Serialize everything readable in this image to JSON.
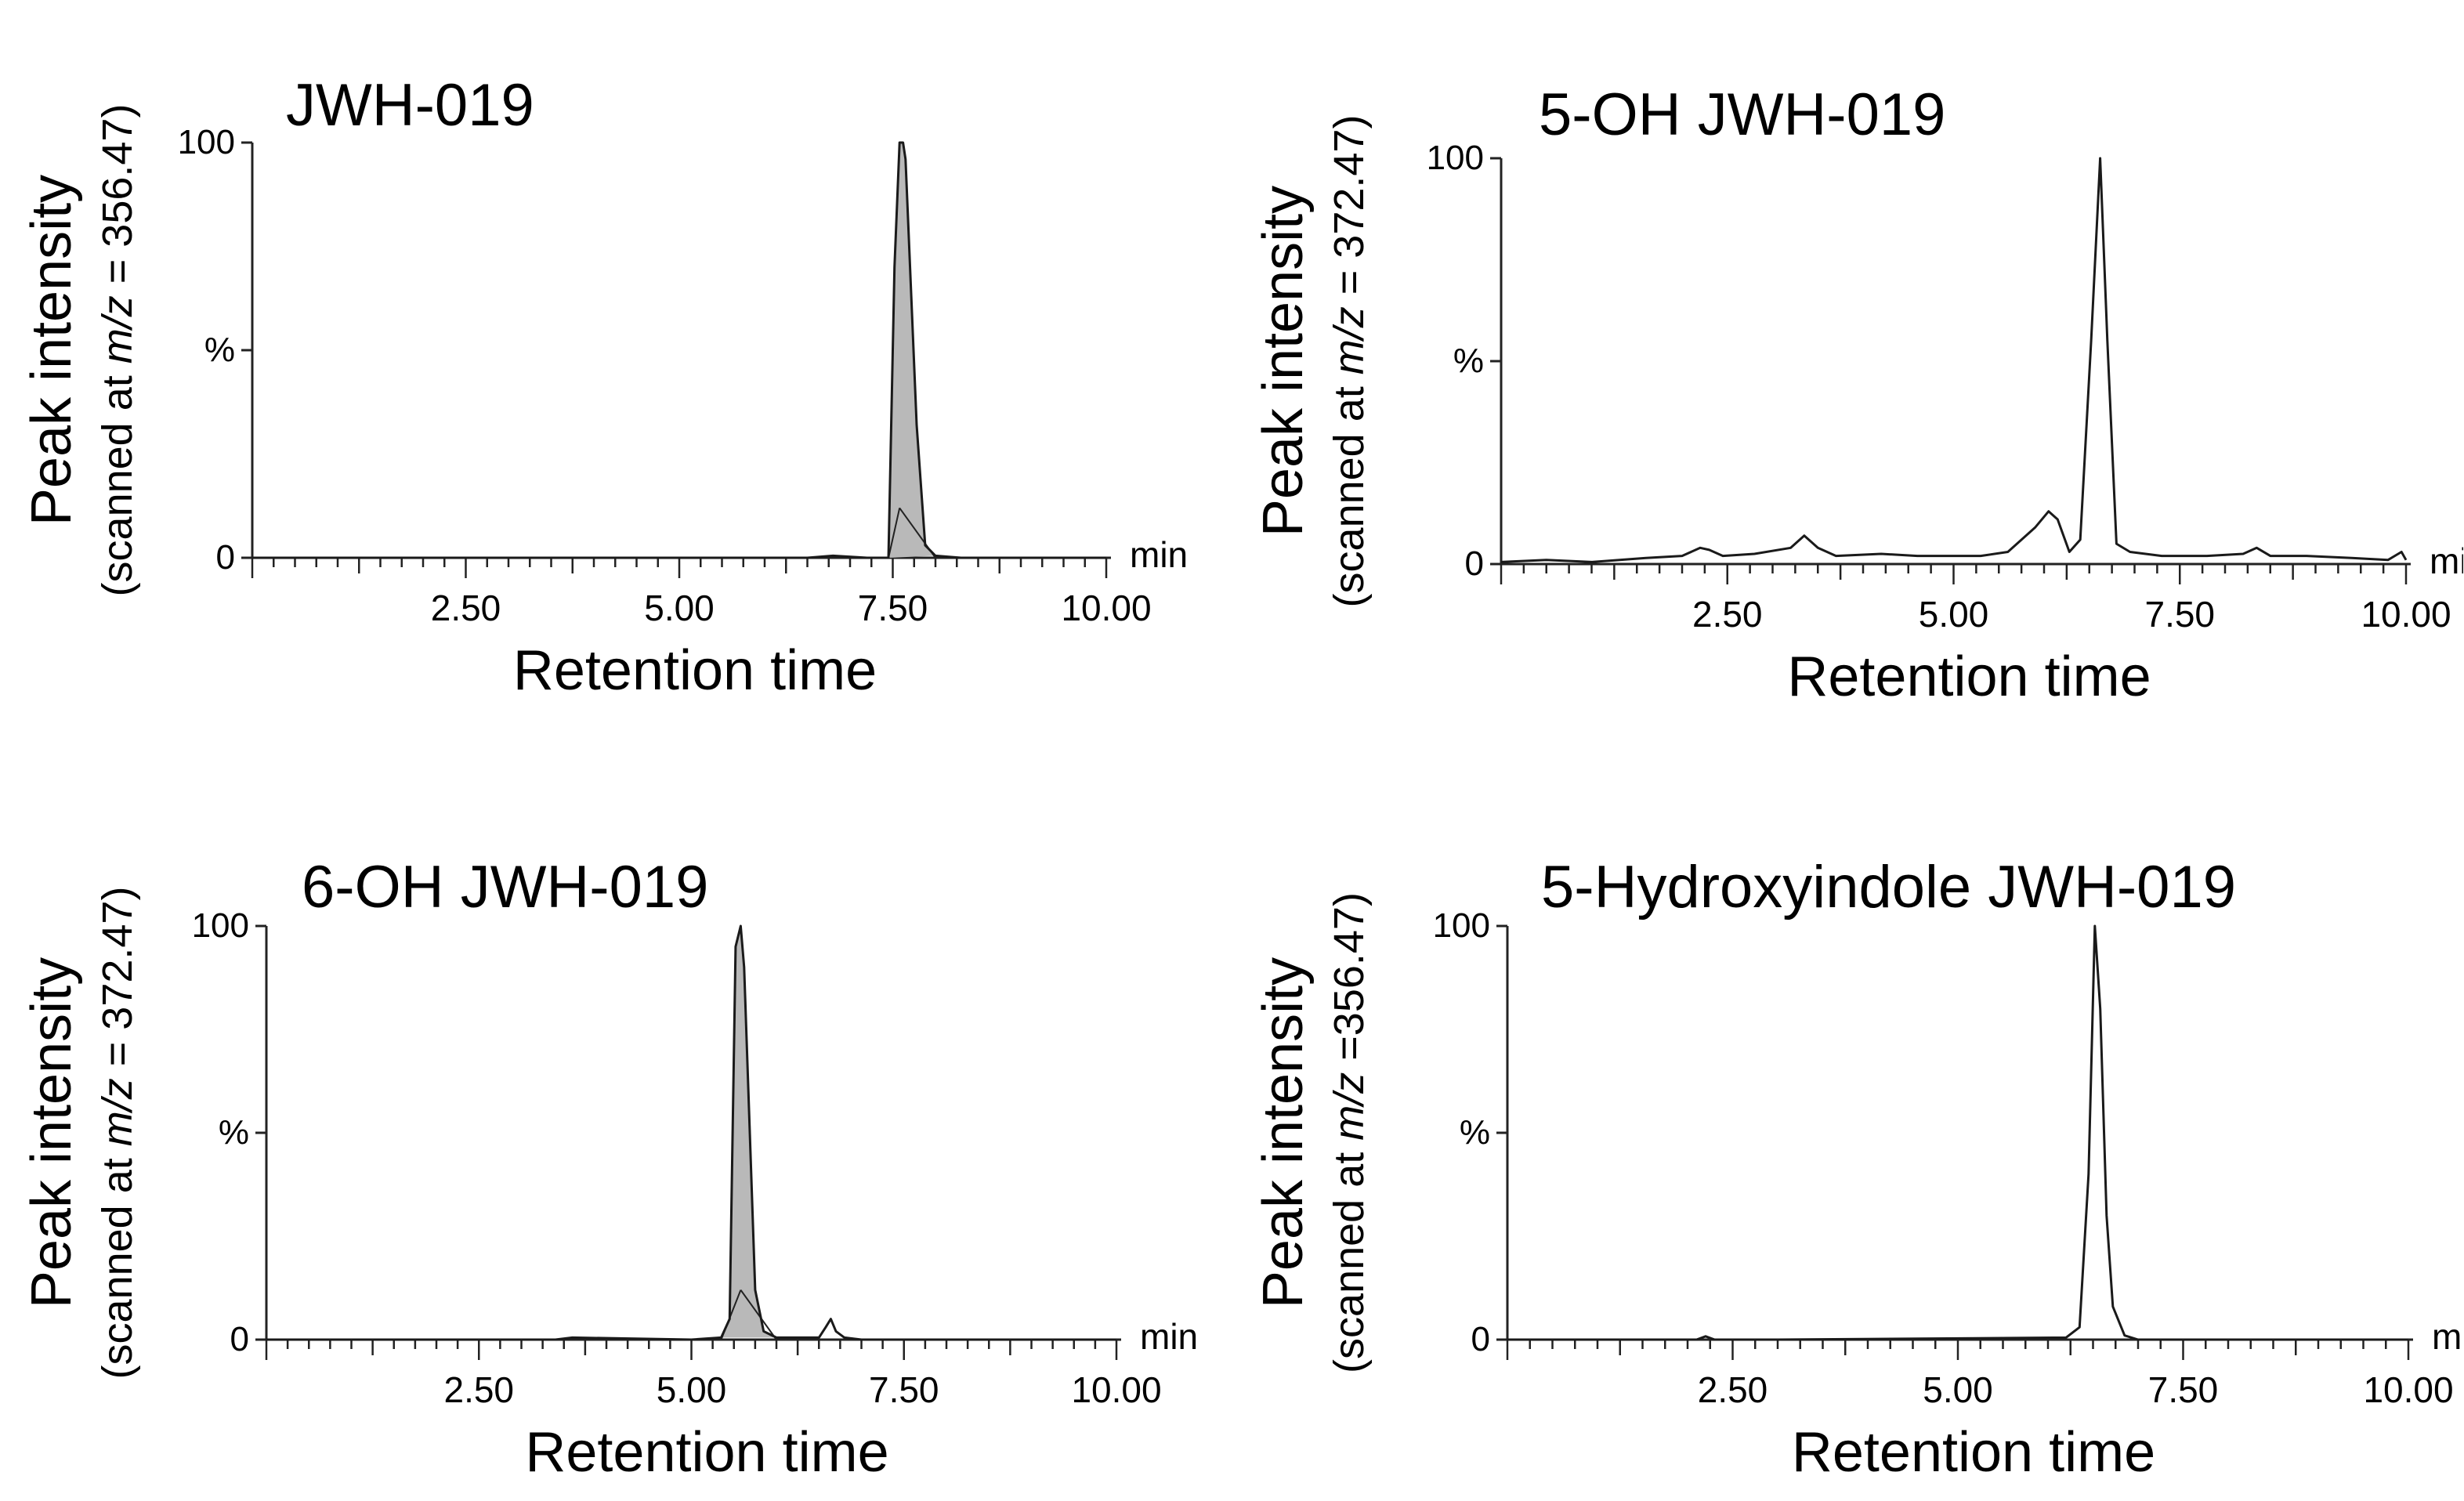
{
  "chart_data": [
    {
      "type": "line",
      "title": "JWH-019",
      "ylabel": "Peak intensity",
      "ylabel_sub_prefix": "(scanned at ",
      "ylabel_sub_mz": "m/z",
      "ylabel_sub_suffix": " = 356.47)",
      "xlabel": "Retention time",
      "x_unit": "min",
      "xlim": [
        0,
        10
      ],
      "ylim": [
        0,
        100
      ],
      "x_ticks": [
        "2.50",
        "5.00",
        "7.50",
        "10.00"
      ],
      "y_ticks": [
        "0",
        "%",
        "100"
      ],
      "series": [
        {
          "name": "JWH-019",
          "x": [
            0.0,
            6.5,
            6.8,
            7.2,
            7.45,
            7.52,
            7.58,
            7.62,
            7.65,
            7.78,
            7.88,
            8.0,
            8.3,
            10.0
          ],
          "y": [
            0,
            0,
            0.5,
            0,
            0,
            70,
            100,
            100,
            96,
            32,
            3,
            0.5,
            0,
            0
          ],
          "fill": true
        }
      ]
    },
    {
      "type": "line",
      "title": "5-OH JWH-019",
      "ylabel": "Peak intensity",
      "ylabel_sub_prefix": "(scanned at ",
      "ylabel_sub_mz": "m/z",
      "ylabel_sub_suffix": " = 372.47)",
      "xlabel": "Retention time",
      "x_unit": "min",
      "xlim": [
        0,
        10
      ],
      "ylim": [
        0,
        100
      ],
      "x_ticks": [
        "2.50",
        "5.00",
        "7.50",
        "10.00"
      ],
      "y_ticks": [
        "0",
        "%",
        "100"
      ],
      "series": [
        {
          "name": "5-OH JWH-019",
          "x": [
            0.0,
            0.5,
            1.0,
            1.6,
            2.0,
            2.2,
            2.3,
            2.45,
            2.8,
            3.2,
            3.35,
            3.5,
            3.7,
            4.2,
            4.6,
            5.0,
            5.3,
            5.6,
            5.9,
            6.05,
            6.15,
            6.28,
            6.4,
            6.52,
            6.62,
            6.7,
            6.8,
            6.95,
            7.3,
            7.8,
            8.2,
            8.35,
            8.5,
            8.9,
            9.4,
            9.8,
            9.95,
            10.0
          ],
          "y": [
            0.5,
            1,
            0.5,
            1.5,
            2,
            4,
            3.5,
            2,
            2.5,
            4,
            7,
            4,
            2,
            2.5,
            2,
            2,
            2,
            3,
            9,
            13,
            11,
            3,
            6,
            55,
            100,
            55,
            5,
            3,
            2,
            2,
            2.5,
            4,
            2,
            2,
            1.5,
            1,
            3,
            1
          ],
          "fill": false
        }
      ]
    },
    {
      "type": "line",
      "title": "6-OH JWH-019",
      "ylabel": "Peak intensity",
      "ylabel_sub_prefix": "(scanned at ",
      "ylabel_sub_mz": "m/z",
      "ylabel_sub_suffix": " = 372.47)",
      "xlabel": "Retention time",
      "x_unit": "min",
      "xlim": [
        0,
        10
      ],
      "ylim": [
        0,
        100
      ],
      "x_ticks": [
        "2.50",
        "5.00",
        "7.50",
        "10.00"
      ],
      "y_ticks": [
        "0",
        "%",
        "100"
      ],
      "series": [
        {
          "name": "6-OH JWH-019",
          "x": [
            0.0,
            3.4,
            3.6,
            5.0,
            5.35,
            5.45,
            5.52,
            5.58,
            5.62,
            5.75,
            5.85,
            6.0,
            6.5,
            6.58,
            6.64,
            6.7,
            6.8,
            7.0,
            10.0
          ],
          "y": [
            0,
            0,
            0.5,
            0,
            0.5,
            5,
            95,
            100,
            90,
            12,
            2,
            0.5,
            0.5,
            3,
            5,
            2,
            0.5,
            0,
            0
          ],
          "fill": true
        }
      ]
    },
    {
      "type": "line",
      "title": "5-Hydroxyindole JWH-019",
      "ylabel": "Peak intensity",
      "ylabel_sub_prefix": "(scanned at ",
      "ylabel_sub_mz": "m/z",
      "ylabel_sub_suffix": " =356.47)",
      "xlabel": "Retention time",
      "x_unit": "min",
      "xlim": [
        0,
        10
      ],
      "ylim": [
        0,
        100
      ],
      "x_ticks": [
        "2.50",
        "5.00",
        "7.50",
        "10.00"
      ],
      "y_ticks": [
        "0",
        "%",
        "100"
      ],
      "series": [
        {
          "name": "5-Hydroxyindole JWH-019",
          "x": [
            0.0,
            2.1,
            2.2,
            2.3,
            3.0,
            6.2,
            6.35,
            6.45,
            6.52,
            6.58,
            6.65,
            6.72,
            6.85,
            7.0,
            10.0
          ],
          "y": [
            0,
            0,
            0.8,
            0,
            0,
            0.5,
            3,
            40,
            100,
            80,
            30,
            8,
            1,
            0,
            0
          ],
          "fill": false
        }
      ]
    }
  ]
}
